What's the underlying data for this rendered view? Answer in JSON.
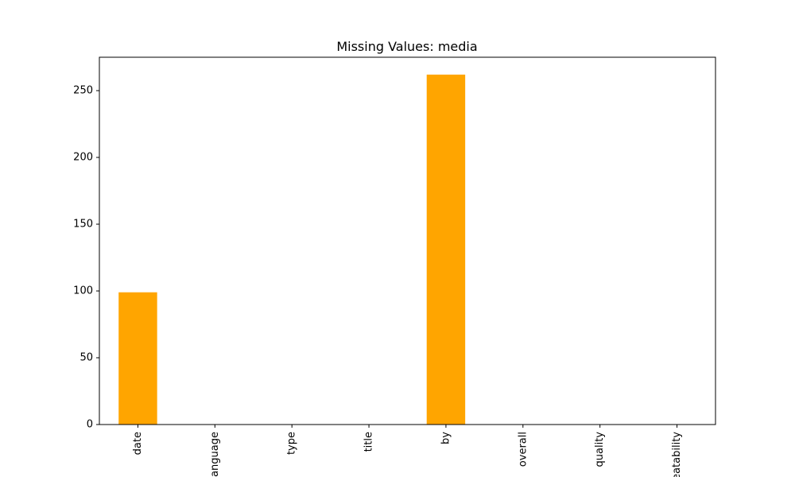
{
  "chart_data": {
    "type": "bar",
    "title": "Missing Values: media",
    "xlabel": "",
    "ylabel": "",
    "categories": [
      "date",
      "language",
      "type",
      "title",
      "by",
      "overall",
      "quality",
      "repeatability"
    ],
    "values": [
      99,
      0,
      0,
      0,
      262,
      0,
      0,
      0
    ],
    "ylim": [
      0,
      275
    ],
    "yticks": [
      0,
      50,
      100,
      150,
      200,
      250
    ],
    "grid": false,
    "bar_color": "#ffa500"
  }
}
